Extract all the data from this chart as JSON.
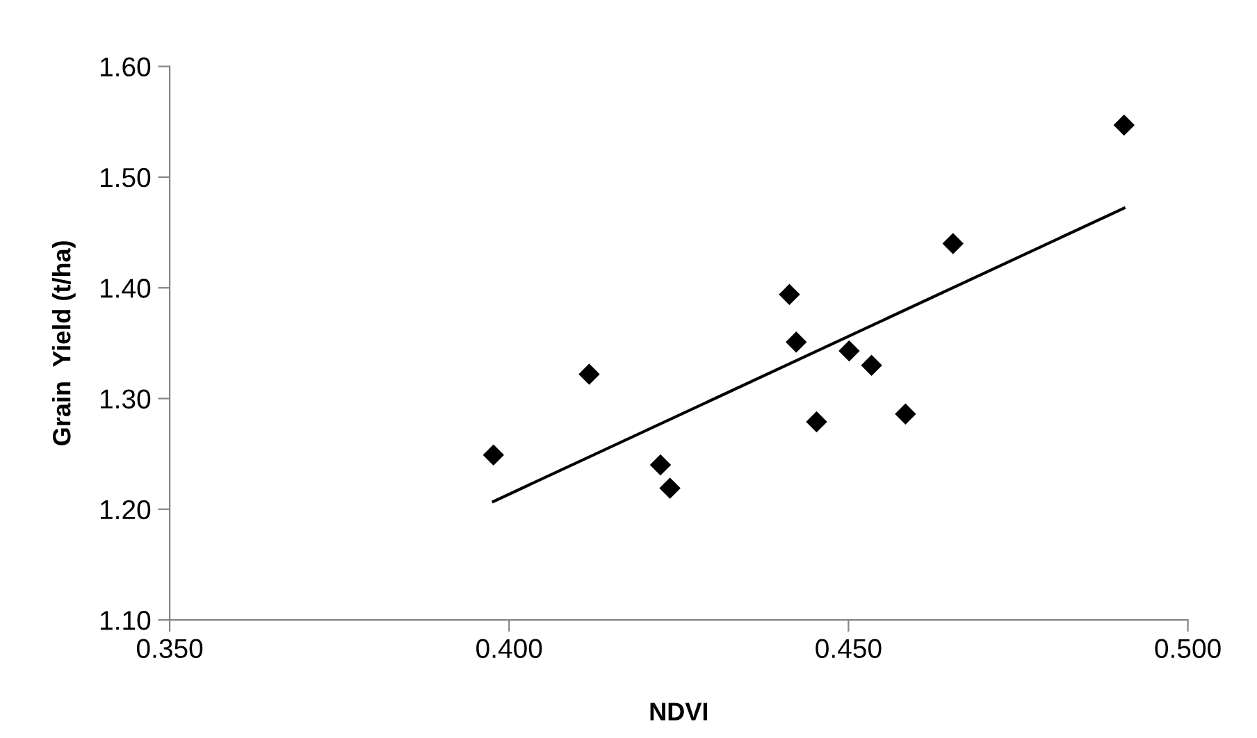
{
  "chart_data": {
    "type": "scatter",
    "xlabel": "NDVI",
    "ylabel": "Grain  Yield (t/ha)",
    "marker": "diamond",
    "grid": false,
    "legend": false,
    "xlim": [
      0.35,
      0.5
    ],
    "xticks": [
      {
        "value": 0.35,
        "label": "0.350"
      },
      {
        "value": 0.4,
        "label": "0.400"
      },
      {
        "value": 0.45,
        "label": "0.450"
      },
      {
        "value": 0.5,
        "label": "0.500"
      }
    ],
    "ylim": [
      1.1,
      1.6
    ],
    "yticks": [
      {
        "value": 1.1,
        "label": "1.10"
      },
      {
        "value": 1.2,
        "label": "1.20"
      },
      {
        "value": 1.3,
        "label": "1.30"
      },
      {
        "value": 1.4,
        "label": "1.40"
      },
      {
        "value": 1.5,
        "label": "1.50"
      },
      {
        "value": 1.6,
        "label": "1.60"
      }
    ],
    "series": [
      {
        "color": "#000000",
        "x": [
          0.3977,
          0.4118,
          0.4223,
          0.4237,
          0.4413,
          0.4423,
          0.4453,
          0.4501,
          0.4534,
          0.4584,
          0.4654,
          0.4906
        ],
        "values": [
          1.249,
          1.322,
          1.24,
          1.219,
          1.394,
          1.351,
          1.279,
          1.343,
          1.33,
          1.286,
          1.44,
          1.547
        ]
      },
      {
        "type": "line",
        "color": "#000000",
        "x": [
          0.3977,
          0.4906
        ],
        "values": [
          1.207,
          1.472
        ],
        "marker": "none",
        "line_style": "solid"
      }
    ]
  }
}
